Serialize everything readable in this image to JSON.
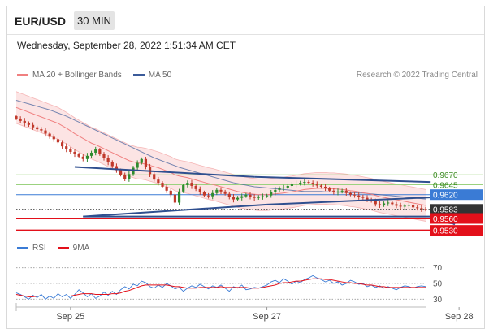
{
  "header": {
    "symbol": "EUR/USD",
    "timeframe": "30 MIN"
  },
  "datetime": "Wednesday, September 28, 2022 1:51:34 AM CET",
  "legend": {
    "ma20_label": "MA 20 + Bollinger Bands",
    "ma50_label": "MA 50",
    "credit": "Research © 2022 Trading Central"
  },
  "rsi_legend": {
    "rsi_label": "RSI",
    "ma9_label": "9MA"
  },
  "colors": {
    "ma20": "#f08080",
    "ma50": "#3b5b9a",
    "bullish": "#2e8b2e",
    "bearish": "#c0392b",
    "resistance": "#9bd27f",
    "pivot_blue": "#3a7bd5",
    "support_red": "#e3101a",
    "trend_line": "#2f4f8f",
    "last_price": "#333333"
  },
  "levels": [
    {
      "label": "0.9670",
      "value": 0.967,
      "style": "resistance"
    },
    {
      "label": "0.9645",
      "value": 0.9645,
      "style": "resistance"
    },
    {
      "label": "0.9620",
      "value": 0.962,
      "style": "pivot"
    },
    {
      "label": "0.9583",
      "value": 0.9583,
      "style": "last"
    },
    {
      "label": "0.9560",
      "value": 0.956,
      "style": "support"
    },
    {
      "label": "0.9530",
      "value": 0.953,
      "style": "support"
    }
  ],
  "rsi_ticks": [
    "70",
    "50",
    "30"
  ],
  "chart_data": {
    "type": "candlestick",
    "x_labels": [
      "Sep 25",
      "Sep 27",
      "Sep 28"
    ],
    "x_label_index": [
      13,
      60,
      106
    ],
    "ylim": [
      0.9517,
      0.99
    ],
    "closes": [
      0.9812,
      0.9806,
      0.98,
      0.9796,
      0.979,
      0.9785,
      0.9782,
      0.9774,
      0.9766,
      0.976,
      0.9752,
      0.9742,
      0.9735,
      0.9728,
      0.9722,
      0.9716,
      0.971,
      0.9718,
      0.9726,
      0.9734,
      0.9722,
      0.9712,
      0.9702,
      0.9692,
      0.9682,
      0.967,
      0.966,
      0.9672,
      0.9688,
      0.97,
      0.971,
      0.969,
      0.9672,
      0.9658,
      0.965,
      0.964,
      0.963,
      0.962,
      0.96,
      0.9628,
      0.9644,
      0.965,
      0.9642,
      0.9634,
      0.9626,
      0.9618,
      0.9616,
      0.9624,
      0.9632,
      0.9628,
      0.9622,
      0.9614,
      0.9608,
      0.9612,
      0.9616,
      0.962,
      0.9614,
      0.9612,
      0.9614,
      0.9616,
      0.9618,
      0.9626,
      0.9632,
      0.9636,
      0.9638,
      0.9642,
      0.9646,
      0.9648,
      0.965,
      0.9652,
      0.965,
      0.9646,
      0.9643,
      0.964,
      0.9636,
      0.963,
      0.9626,
      0.9628,
      0.963,
      0.9624,
      0.962,
      0.9618,
      0.9615,
      0.9612,
      0.9608,
      0.9604,
      0.9596,
      0.9594,
      0.9598,
      0.96,
      0.9596,
      0.9592,
      0.959,
      0.9592,
      0.9594,
      0.9588,
      0.9586,
      0.9584,
      0.9583
    ],
    "open_first": 0.9818,
    "ma20": [
      0.984,
      0.9836,
      0.9832,
      0.9828,
      0.9824,
      0.982,
      0.9816,
      0.9812,
      0.9808,
      0.9804,
      0.98,
      0.9794,
      0.9788,
      0.9781,
      0.9774,
      0.9768,
      0.9762,
      0.9756,
      0.975,
      0.9746,
      0.9741,
      0.9736,
      0.9731,
      0.9726,
      0.9721,
      0.9716,
      0.9711,
      0.9706,
      0.9703,
      0.97,
      0.9699,
      0.9697,
      0.9694,
      0.9691,
      0.9688,
      0.9684,
      0.968,
      0.9676,
      0.967,
      0.9667,
      0.9665,
      0.9663,
      0.966,
      0.9657,
      0.9654,
      0.9651,
      0.9648,
      0.9646,
      0.9643,
      0.964,
      0.9637,
      0.9634,
      0.9631,
      0.9628,
      0.9626,
      0.9624,
      0.9622,
      0.9621,
      0.962,
      0.962,
      0.962,
      0.9621,
      0.9622,
      0.9623,
      0.9624,
      0.9626,
      0.9627,
      0.9629,
      0.9631,
      0.9633,
      0.9634,
      0.9635,
      0.9636,
      0.9636,
      0.9636,
      0.9635,
      0.9635,
      0.9634,
      0.9633,
      0.9632,
      0.963,
      0.9629,
      0.9627,
      0.9625,
      0.9623,
      0.9621,
      0.9618,
      0.9615,
      0.9613,
      0.9611,
      0.9609,
      0.9607,
      0.9605,
      0.9603,
      0.9601,
      0.9599,
      0.9597,
      0.9595,
      0.9593
    ],
    "ma50": [
      0.9858,
      0.9855,
      0.9852,
      0.9849,
      0.9846,
      0.9843,
      0.984,
      0.9837,
      0.9834,
      0.983,
      0.9826,
      0.9822,
      0.9818,
      0.9813,
      0.9808,
      0.9803,
      0.9798,
      0.9793,
      0.9788,
      0.9783,
      0.9778,
      0.9773,
      0.9768,
      0.9763,
      0.9758,
      0.9753,
      0.9748,
      0.9743,
      0.9738,
      0.9733,
      0.9728,
      0.9723,
      0.9718,
      0.9713,
      0.9709,
      0.9705,
      0.9701,
      0.9697,
      0.9693,
      0.9689,
      0.9686,
      0.9683,
      0.968,
      0.9677,
      0.9674,
      0.9671,
      0.9668,
      0.9665,
      0.9662,
      0.9659,
      0.9656,
      0.9653,
      0.965,
      0.9648,
      0.9646,
      0.9644,
      0.9642,
      0.964,
      0.9639,
      0.9638,
      0.9637,
      0.9636,
      0.9635,
      0.9634,
      0.9633,
      0.9632,
      0.9631,
      0.963,
      0.9629,
      0.9628,
      0.9628,
      0.9628,
      0.9628,
      0.9628,
      0.9627,
      0.9627,
      0.9627,
      0.9626,
      0.9626,
      0.9626,
      0.9625,
      0.9625,
      0.9624,
      0.9624,
      0.9623,
      0.9622,
      0.9621,
      0.962,
      0.9619,
      0.9618,
      0.9617,
      0.9616,
      0.9615,
      0.9614,
      0.9613,
      0.9612,
      0.9611,
      0.961,
      0.9609
    ],
    "bb_halfwidth": 0.004,
    "trendlines": [
      {
        "from": [
          14,
          0.969
        ],
        "to": [
          57,
          0.9665
        ]
      },
      {
        "from": [
          57,
          0.9665
        ],
        "to": [
          99,
          0.9652
        ]
      },
      {
        "from": [
          16,
          0.9565
        ],
        "to": [
          60,
          0.9595
        ]
      },
      {
        "from": [
          60,
          0.9595
        ],
        "to": [
          99,
          0.9613
        ]
      },
      {
        "from": [
          16,
          0.9565
        ],
        "to": [
          99,
          0.9565
        ]
      }
    ],
    "forecast_arrow": {
      "from": [
        99,
        0.9583
      ],
      "to": [
        105,
        0.9545
      ]
    },
    "rsi": {
      "ylim": [
        20,
        80
      ],
      "rsi": [
        38,
        36,
        33,
        30,
        35,
        32,
        36,
        30,
        34,
        31,
        37,
        33,
        36,
        31,
        36,
        42,
        38,
        33,
        37,
        31,
        34,
        39,
        35,
        40,
        36,
        42,
        46,
        43,
        49,
        47,
        53,
        51,
        46,
        44,
        48,
        45,
        50,
        47,
        43,
        45,
        40,
        44,
        47,
        45,
        49,
        46,
        43,
        47,
        45,
        48,
        44,
        40,
        46,
        44,
        48,
        42,
        43,
        45,
        44,
        46,
        48,
        52,
        54,
        51,
        56,
        53,
        49,
        53,
        51,
        55,
        57,
        60,
        57,
        55,
        52,
        54,
        50,
        52,
        48,
        50,
        54,
        52,
        49,
        50,
        46,
        48,
        45,
        47,
        44,
        46,
        44,
        42,
        45,
        47,
        46,
        44,
        46,
        47,
        46
      ],
      "ma9": [
        36,
        35,
        34,
        33,
        33,
        34,
        34,
        34,
        34,
        34,
        34,
        34,
        34,
        34,
        35,
        36,
        37,
        37,
        37,
        36,
        36,
        36,
        36,
        37,
        37,
        38,
        40,
        41,
        43,
        45,
        47,
        48,
        48,
        48,
        48,
        48,
        48,
        47,
        46,
        46,
        45,
        44,
        44,
        44,
        45,
        45,
        45,
        45,
        45,
        46,
        45,
        45,
        45,
        45,
        45,
        45,
        44,
        44,
        44,
        45,
        46,
        47,
        48,
        50,
        51,
        51,
        52,
        53,
        53,
        54,
        55,
        56,
        56,
        56,
        55,
        55,
        54,
        53,
        52,
        51,
        51,
        50,
        50,
        49,
        48,
        48,
        47,
        46,
        46,
        45,
        45,
        45,
        45,
        45,
        45,
        45,
        45,
        45,
        45
      ]
    }
  }
}
